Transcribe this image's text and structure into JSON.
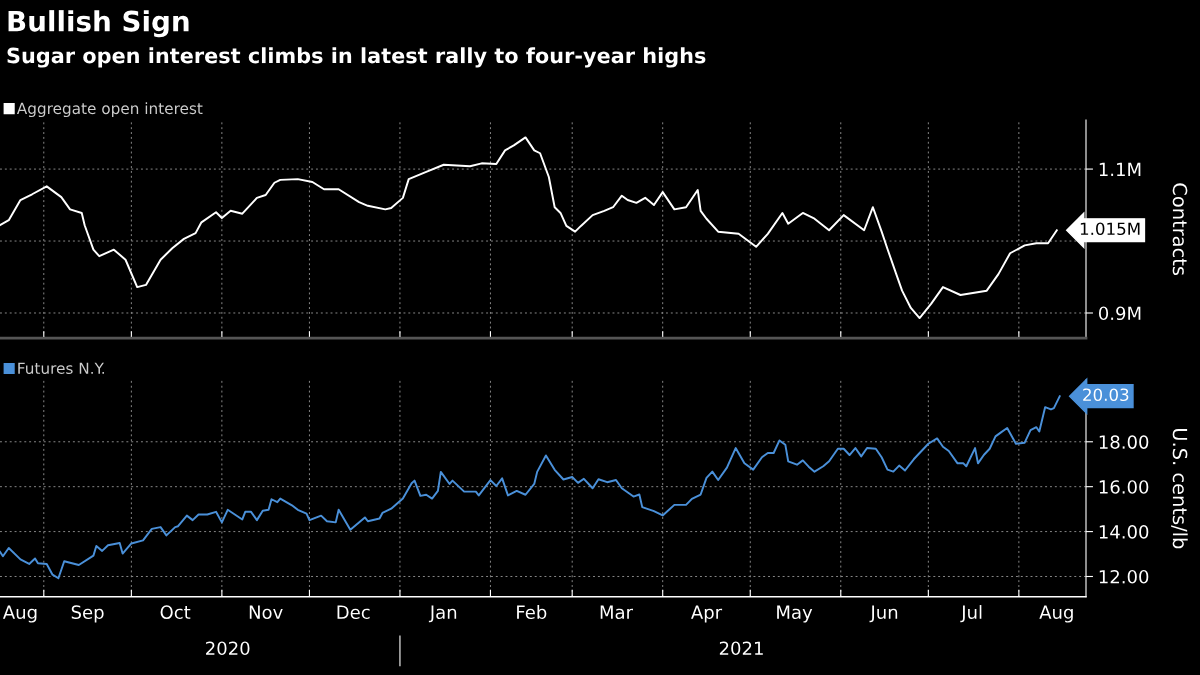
{
  "chart_data": [
    {
      "type": "line",
      "title": "Bullish Sign",
      "subtitle": "Sugar open interest climbs in latest rally to four-year highs",
      "ylabel": "Contracts",
      "legend": "top left",
      "grid": true,
      "tick_labels": "y",
      "xlim": [
        "2020-08-17",
        "2021-08-24"
      ],
      "xticks": [
        {
          "value": "2020-09-01",
          "label": null
        },
        {
          "value": "2020-10-01",
          "label": null
        },
        {
          "value": "2020-11-01",
          "label": null
        },
        {
          "value": "2020-12-01",
          "label": null
        },
        {
          "value": "2021-01-01",
          "label": null
        },
        {
          "value": "2021-02-01",
          "label": null
        },
        {
          "value": "2021-03-01",
          "label": null
        },
        {
          "value": "2021-04-01",
          "label": null
        },
        {
          "value": "2021-05-01",
          "label": null
        },
        {
          "value": "2021-06-01",
          "label": null
        },
        {
          "value": "2021-07-01",
          "label": null
        },
        {
          "value": "2021-08-01",
          "label": null
        }
      ],
      "ylim": [
        0.865,
        1.168
      ],
      "yticks": [
        {
          "value": 0.9,
          "label": "0.9M"
        },
        {
          "value": 1.0,
          "label": null
        },
        {
          "value": 1.1,
          "label": "1.1M"
        }
      ],
      "series": [
        {
          "name": "Aggregate open interest",
          "color": "#ffffff",
          "x": [
            "2020-08-17",
            "2020-08-20",
            "2020-08-24",
            "2020-08-28",
            "2020-09-02",
            "2020-09-07",
            "2020-09-10",
            "2020-09-14",
            "2020-09-15",
            "2020-09-18",
            "2020-09-20",
            "2020-09-25",
            "2020-09-29",
            "2020-10-03",
            "2020-10-06",
            "2020-10-11",
            "2020-10-15",
            "2020-10-19",
            "2020-10-23",
            "2020-10-25",
            "2020-10-30",
            "2020-11-01",
            "2020-11-04",
            "2020-11-08",
            "2020-11-13",
            "2020-11-16",
            "2020-11-19",
            "2020-11-21",
            "2020-11-27",
            "2020-12-02",
            "2020-12-06",
            "2020-12-11",
            "2020-12-18",
            "2020-12-21",
            "2020-12-27",
            "2020-12-29",
            "2021-01-02",
            "2021-01-04",
            "2021-01-10",
            "2021-01-16",
            "2021-01-25",
            "2021-01-29",
            "2021-02-03",
            "2021-02-06",
            "2021-02-09",
            "2021-02-13",
            "2021-02-16",
            "2021-02-18",
            "2021-02-21",
            "2021-02-23",
            "2021-02-25",
            "2021-02-27",
            "2021-03-02",
            "2021-03-04",
            "2021-03-08",
            "2021-03-12",
            "2021-03-15",
            "2021-03-18",
            "2021-03-20",
            "2021-03-23",
            "2021-03-26",
            "2021-03-29",
            "2021-04-01",
            "2021-04-05",
            "2021-04-09",
            "2021-04-13",
            "2021-04-14",
            "2021-04-16",
            "2021-04-20",
            "2021-04-27",
            "2021-05-03",
            "2021-05-07",
            "2021-05-12",
            "2021-05-14",
            "2021-05-19",
            "2021-05-23",
            "2021-05-28",
            "2021-06-02",
            "2021-06-09",
            "2021-06-12",
            "2021-06-15",
            "2021-06-17",
            "2021-06-20",
            "2021-06-22",
            "2021-06-25",
            "2021-06-28",
            "2021-07-02",
            "2021-07-06",
            "2021-07-12",
            "2021-07-21",
            "2021-07-25",
            "2021-07-29",
            "2021-08-03",
            "2021-08-07",
            "2021-08-11",
            "2021-08-14"
          ],
          "values": [
            1.022,
            1.029,
            1.057,
            1.065,
            1.076,
            1.061,
            1.044,
            1.039,
            1.022,
            0.988,
            0.979,
            0.988,
            0.974,
            0.936,
            0.939,
            0.974,
            0.99,
            1.003,
            1.011,
            1.026,
            1.04,
            1.032,
            1.042,
            1.038,
            1.06,
            1.064,
            1.081,
            1.085,
            1.086,
            1.082,
            1.072,
            1.072,
            1.054,
            1.049,
            1.044,
            1.046,
            1.06,
            1.086,
            1.096,
            1.106,
            1.104,
            1.108,
            1.107,
            1.126,
            1.133,
            1.144,
            1.126,
            1.122,
            1.089,
            1.047,
            1.039,
            1.021,
            1.013,
            1.021,
            1.036,
            1.042,
            1.047,
            1.063,
            1.057,
            1.053,
            1.06,
            1.05,
            1.068,
            1.044,
            1.047,
            1.071,
            1.042,
            1.031,
            1.013,
            1.01,
            0.992,
            1.01,
            1.039,
            1.024,
            1.039,
            1.031,
            1.015,
            1.036,
            1.015,
            1.047,
            1.013,
            0.989,
            0.954,
            0.931,
            0.907,
            0.893,
            0.913,
            0.936,
            0.925,
            0.931,
            0.954,
            0.983,
            0.994,
            0.997,
            0.997,
            1.015
          ],
          "value_labels": [
            null,
            null,
            null,
            null,
            null,
            null,
            null,
            null,
            null,
            null,
            null,
            null,
            null,
            null,
            null,
            null,
            null,
            null,
            null,
            null,
            null,
            null,
            null,
            null,
            null,
            null,
            null,
            null,
            null,
            null,
            null,
            null,
            null,
            null,
            null,
            null,
            null,
            null,
            null,
            null,
            null,
            null,
            null,
            null,
            null,
            null,
            null,
            null,
            null,
            null,
            null,
            null,
            null,
            null,
            null,
            null,
            null,
            null,
            null,
            null,
            null,
            null,
            null,
            null,
            null,
            null,
            null,
            null,
            null,
            null,
            null,
            null,
            null,
            null,
            null,
            null,
            null,
            null,
            null,
            null,
            null,
            null,
            null,
            null,
            null,
            null,
            null,
            null,
            null,
            null,
            null,
            null,
            null,
            null,
            null,
            "1.015M"
          ]
        }
      ]
    },
    {
      "type": "line",
      "ylabel": "U.S. cents/lb",
      "legend": "top left",
      "grid": true,
      "xlim": [
        "2020-08-17",
        "2021-08-24"
      ],
      "xticks": [
        {
          "value": "2020-08-24",
          "label": "Aug"
        },
        {
          "value": "2020-09-01",
          "label": null
        },
        {
          "value": "2020-09-16",
          "label": "Sep"
        },
        {
          "value": "2020-10-01",
          "label": null
        },
        {
          "value": "2020-10-16",
          "label": "Oct"
        },
        {
          "value": "2020-11-01",
          "label": null
        },
        {
          "value": "2020-11-16",
          "label": "Nov"
        },
        {
          "value": "2020-12-01",
          "label": null
        },
        {
          "value": "2020-12-16",
          "label": "Dec"
        },
        {
          "value": "2021-01-01",
          "label": null
        },
        {
          "value": "2021-01-16",
          "label": "Jan"
        },
        {
          "value": "2021-02-01",
          "label": null
        },
        {
          "value": "2021-02-15",
          "label": "Feb"
        },
        {
          "value": "2021-03-01",
          "label": null
        },
        {
          "value": "2021-03-16",
          "label": "Mar"
        },
        {
          "value": "2021-04-01",
          "label": null
        },
        {
          "value": "2021-04-16",
          "label": "Apr"
        },
        {
          "value": "2021-05-01",
          "label": null
        },
        {
          "value": "2021-05-16",
          "label": "May"
        },
        {
          "value": "2021-06-01",
          "label": null
        },
        {
          "value": "2021-06-16",
          "label": "Jun"
        },
        {
          "value": "2021-07-01",
          "label": null
        },
        {
          "value": "2021-07-16",
          "label": "Jul"
        },
        {
          "value": "2021-08-01",
          "label": null
        },
        {
          "value": "2021-08-14",
          "label": "Aug"
        }
      ],
      "x2lim": [
        "2020-08-17",
        "2021-08-24"
      ],
      "x2ticks": [
        {
          "value": "2020-11-03",
          "label": "2020"
        },
        {
          "value": "2021-01-01",
          "label": null
        },
        {
          "value": "2021-04-28",
          "label": "2021"
        }
      ],
      "ylim": [
        11.1,
        20.75
      ],
      "yticks": [
        {
          "value": 12,
          "label": "12.00"
        },
        {
          "value": 14,
          "label": "14.00"
        },
        {
          "value": 16,
          "label": "16.00"
        },
        {
          "value": 18,
          "label": "18.00"
        }
      ],
      "series": [
        {
          "name": "Futures N.Y.",
          "color": "#4a90d9",
          "x": [
            "2020-08-17",
            "2020-08-18",
            "2020-08-20",
            "2020-08-24",
            "2020-08-27",
            "2020-08-29",
            "2020-08-30",
            "2020-09-02",
            "2020-09-04",
            "2020-09-06",
            "2020-09-08",
            "2020-09-13",
            "2020-09-18",
            "2020-09-19",
            "2020-09-21",
            "2020-09-23",
            "2020-09-27",
            "2020-09-28",
            "2020-10-01",
            "2020-10-05",
            "2020-10-08",
            "2020-10-11",
            "2020-10-13",
            "2020-10-16",
            "2020-10-17",
            "2020-10-20",
            "2020-10-22",
            "2020-10-24",
            "2020-10-27",
            "2020-10-30",
            "2020-11-01",
            "2020-11-03",
            "2020-11-08",
            "2020-11-09",
            "2020-11-11",
            "2020-11-13",
            "2020-11-15",
            "2020-11-17",
            "2020-11-18",
            "2020-11-20",
            "2020-11-21",
            "2020-11-25",
            "2020-11-27",
            "2020-11-30",
            "2020-12-01",
            "2020-12-05",
            "2020-12-07",
            "2020-12-10",
            "2020-12-11",
            "2020-12-15",
            "2020-12-20",
            "2020-12-21",
            "2020-12-25",
            "2020-12-26",
            "2020-12-29",
            "2021-01-02",
            "2021-01-05",
            "2021-01-06",
            "2021-01-08",
            "2021-01-10",
            "2021-01-12",
            "2021-01-14",
            "2021-01-15",
            "2021-01-18",
            "2021-01-19",
            "2021-01-23",
            "2021-01-27",
            "2021-01-28",
            "2021-02-01",
            "2021-02-03",
            "2021-02-05",
            "2021-02-07",
            "2021-02-10",
            "2021-02-13",
            "2021-02-16",
            "2021-02-17",
            "2021-02-20",
            "2021-02-23",
            "2021-02-26",
            "2021-03-01",
            "2021-03-03",
            "2021-03-05",
            "2021-03-08",
            "2021-03-10",
            "2021-03-13",
            "2021-03-16",
            "2021-03-18",
            "2021-03-22",
            "2021-03-24",
            "2021-03-25",
            "2021-03-29",
            "2021-04-01",
            "2021-04-05",
            "2021-04-09",
            "2021-04-11",
            "2021-04-14",
            "2021-04-16",
            "2021-04-18",
            "2021-04-20",
            "2021-04-23",
            "2021-04-26",
            "2021-04-29",
            "2021-05-02",
            "2021-05-05",
            "2021-05-07",
            "2021-05-09",
            "2021-05-11",
            "2021-05-13",
            "2021-05-14",
            "2021-05-17",
            "2021-05-19",
            "2021-05-21",
            "2021-05-23",
            "2021-05-26",
            "2021-05-28",
            "2021-05-31",
            "2021-06-02",
            "2021-06-04",
            "2021-06-06",
            "2021-06-08",
            "2021-06-10",
            "2021-06-13",
            "2021-06-15",
            "2021-06-17",
            "2021-06-19",
            "2021-06-21",
            "2021-06-23",
            "2021-06-26",
            "2021-06-28",
            "2021-07-01",
            "2021-07-04",
            "2021-07-06",
            "2021-07-08",
            "2021-07-11",
            "2021-07-13",
            "2021-07-14",
            "2021-07-17",
            "2021-07-18",
            "2021-07-20",
            "2021-07-22",
            "2021-07-24",
            "2021-07-26",
            "2021-07-28",
            "2021-07-31",
            "2021-08-03",
            "2021-08-05",
            "2021-08-07",
            "2021-08-08",
            "2021-08-10",
            "2021-08-12",
            "2021-08-13",
            "2021-08-15"
          ],
          "values": [
            13.1,
            12.9,
            13.27,
            12.76,
            12.56,
            12.8,
            12.59,
            12.56,
            12.08,
            11.92,
            12.68,
            12.51,
            12.93,
            13.36,
            13.14,
            13.39,
            13.49,
            13.02,
            13.47,
            13.61,
            14.12,
            14.2,
            13.83,
            14.2,
            14.24,
            14.71,
            14.51,
            14.76,
            14.76,
            14.88,
            14.41,
            14.97,
            14.54,
            14.88,
            14.88,
            14.51,
            14.93,
            14.97,
            15.44,
            15.31,
            15.47,
            15.17,
            14.97,
            14.8,
            14.51,
            14.71,
            14.46,
            14.41,
            14.97,
            14.08,
            14.63,
            14.46,
            14.58,
            14.83,
            15.02,
            15.47,
            16.15,
            16.27,
            15.59,
            15.64,
            15.47,
            15.81,
            16.66,
            16.12,
            16.27,
            15.78,
            15.78,
            15.61,
            16.29,
            16.03,
            16.37,
            15.61,
            15.81,
            15.64,
            16.12,
            16.66,
            17.39,
            16.75,
            16.32,
            16.43,
            16.17,
            16.35,
            15.93,
            16.33,
            16.2,
            16.3,
            15.93,
            15.56,
            15.65,
            15.09,
            14.91,
            14.72,
            15.19,
            15.19,
            15.46,
            15.65,
            16.39,
            16.67,
            16.3,
            16.85,
            17.72,
            17.04,
            16.76,
            17.31,
            17.5,
            17.5,
            18.06,
            17.87,
            17.13,
            16.98,
            17.17,
            16.89,
            16.67,
            16.91,
            17.13,
            17.69,
            17.69,
            17.41,
            17.72,
            17.35,
            17.72,
            17.69,
            17.31,
            16.76,
            16.67,
            16.94,
            16.72,
            17.22,
            17.5,
            17.91,
            18.15,
            17.78,
            17.59,
            17.04,
            17.04,
            16.91,
            17.72,
            17.04,
            17.41,
            17.69,
            18.24,
            18.43,
            18.61,
            17.91,
            17.96,
            18.52,
            18.65,
            18.46,
            19.54,
            19.44,
            19.5,
            20.03
          ],
          "value_labels": [
            null,
            null,
            null,
            null,
            null,
            null,
            null,
            null,
            null,
            null,
            null,
            null,
            null,
            null,
            null,
            null,
            null,
            null,
            null,
            null,
            null,
            null,
            null,
            null,
            null,
            null,
            null,
            null,
            null,
            null,
            null,
            null,
            null,
            null,
            null,
            null,
            null,
            null,
            null,
            null,
            null,
            null,
            null,
            null,
            null,
            null,
            null,
            null,
            null,
            null,
            null,
            null,
            null,
            null,
            null,
            null,
            null,
            null,
            null,
            null,
            null,
            null,
            null,
            null,
            null,
            null,
            null,
            null,
            null,
            null,
            null,
            null,
            null,
            null,
            null,
            null,
            null,
            null,
            null,
            null,
            null,
            null,
            null,
            null,
            null,
            null,
            null,
            null,
            null,
            null,
            null,
            null,
            null,
            null,
            null,
            null,
            null,
            null,
            null,
            null,
            null,
            null,
            null,
            null,
            null,
            null,
            null,
            null,
            null,
            null,
            null,
            null,
            null,
            null,
            null,
            null,
            null,
            null,
            null,
            null,
            null,
            null,
            null,
            null,
            null,
            null,
            null,
            null,
            null,
            null,
            null,
            null,
            null,
            null,
            null,
            null,
            null,
            null,
            null,
            null,
            null,
            null,
            null,
            null,
            null,
            null,
            null,
            null,
            null,
            null,
            null,
            "20.03"
          ]
        }
      ]
    }
  ]
}
